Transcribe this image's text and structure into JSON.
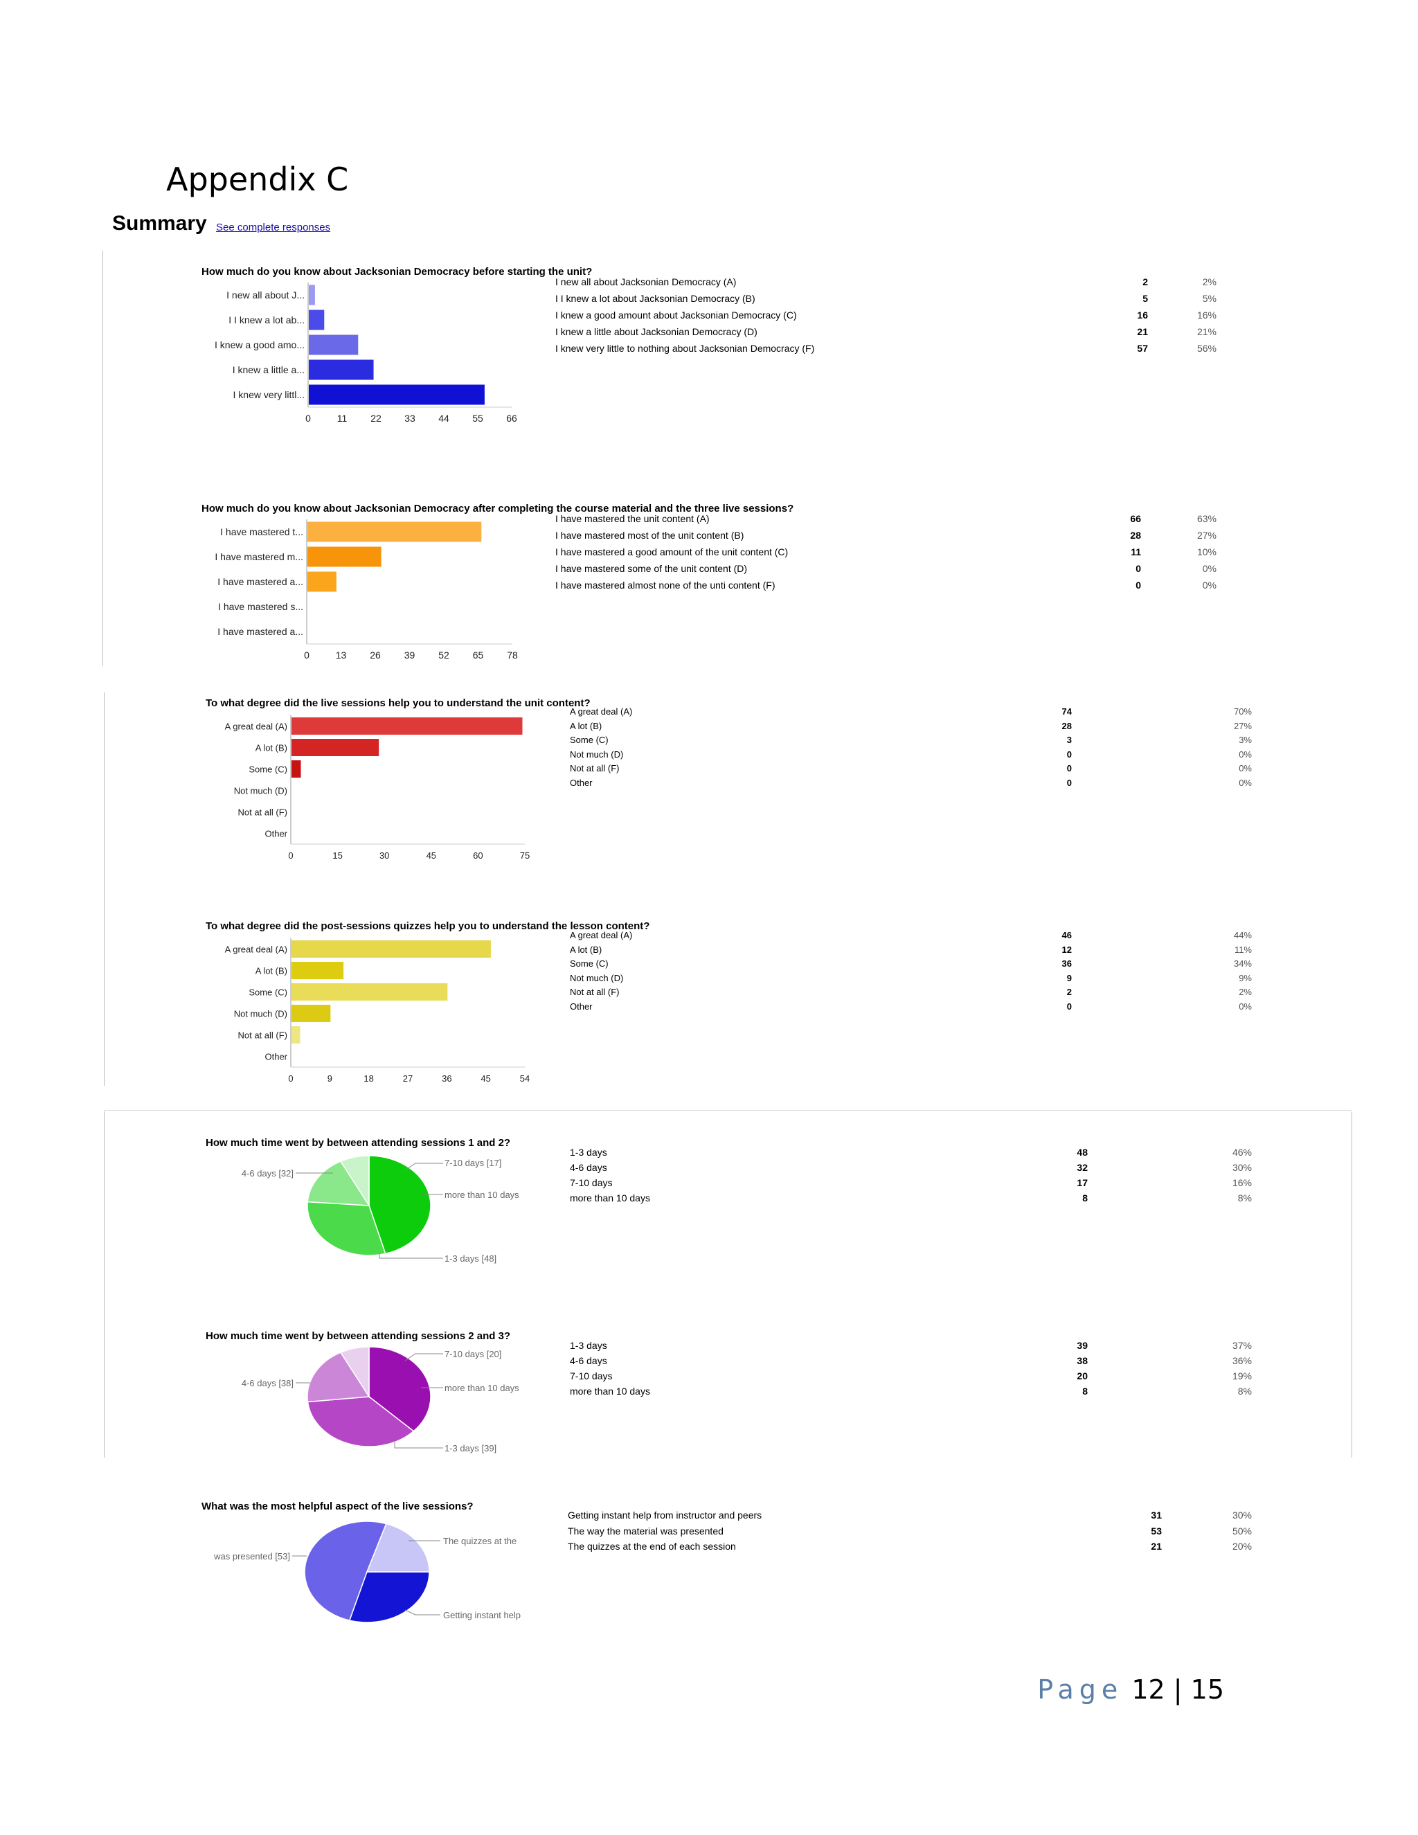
{
  "document": {
    "appendix_title": "Appendix C",
    "summary_heading": "Summary",
    "see_complete_link": "See complete responses",
    "footer": {
      "page_word": "Page",
      "page_numbers": "12 | 15"
    }
  },
  "chart_data": [
    {
      "type": "bar",
      "title": "How much do you know about Jacksonian Democracy before starting the unit?",
      "categories": [
        "I new all about J...",
        "I I knew a lot ab...",
        "I knew a good amo...",
        "I knew a little a...",
        "I knew very littl..."
      ],
      "values": [
        2,
        5,
        16,
        21,
        57
      ],
      "xlim": [
        0,
        66
      ],
      "xticks": [
        "0",
        "11",
        "22",
        "33",
        "44",
        "55",
        "66"
      ],
      "colors": [
        "#9a9af3",
        "#4b4bea",
        "#6a6ae8",
        "#2b2bdf",
        "#1111d6"
      ],
      "rows": [
        {
          "label": "I new all about Jacksonian Democracy (A)",
          "count": "2",
          "percent": "2%"
        },
        {
          "label": "I I knew a lot about Jacksonian Democracy (B)",
          "count": "5",
          "percent": "5%"
        },
        {
          "label": "I knew a good amount about Jacksonian Democracy (C)",
          "count": "16",
          "percent": "16%"
        },
        {
          "label": "I knew a little about Jacksonian Democracy (D)",
          "count": "21",
          "percent": "21%"
        },
        {
          "label": "I knew very little to nothing about Jacksonian Democracy (F)",
          "count": "57",
          "percent": "56%"
        }
      ]
    },
    {
      "type": "bar",
      "title": "How much do you know about Jacksonian Democracy after completing the course material and the three live sessions?",
      "categories": [
        "I have mastered t...",
        "I have mastered m...",
        "I have mastered a...",
        "I have mastered s...",
        "I have mastered a..."
      ],
      "values": [
        66,
        28,
        11,
        0,
        0
      ],
      "xlim": [
        0,
        78
      ],
      "xticks": [
        "0",
        "13",
        "26",
        "39",
        "52",
        "65",
        "78"
      ],
      "colors": [
        "#fbb040",
        "#f7940a",
        "#fba51c",
        "#fbb040",
        "#fbb040"
      ],
      "rows": [
        {
          "label": "I have mastered the unit content (A)",
          "count": "66",
          "percent": "63%"
        },
        {
          "label": "I have mastered most of the unit content (B)",
          "count": "28",
          "percent": "27%"
        },
        {
          "label": "I have mastered a good amount of the unit content (C)",
          "count": "11",
          "percent": "10%"
        },
        {
          "label": "I have mastered some of the unit content (D)",
          "count": "0",
          "percent": "0%"
        },
        {
          "label": "I have mastered almost none of the unti content (F)",
          "count": "0",
          "percent": "0%"
        }
      ]
    },
    {
      "type": "bar",
      "title": "To what degree did the live sessions help you to understand the unit content?",
      "categories": [
        "A great deal (A)",
        "A lot (B)",
        "Some (C)",
        "Not much (D)",
        "Not at all (F)",
        "Other"
      ],
      "values": [
        74,
        28,
        3,
        0,
        0,
        0
      ],
      "xlim": [
        0,
        75
      ],
      "xticks": [
        "0",
        "15",
        "30",
        "45",
        "60",
        "75"
      ],
      "colors": [
        "#df3a3a",
        "#d42424",
        "#c71212",
        "#df3a3a",
        "#df3a3a",
        "#df3a3a"
      ],
      "rows": [
        {
          "label": "A great deal (A)",
          "count": "74",
          "percent": "70%"
        },
        {
          "label": "A lot (B)",
          "count": "28",
          "percent": "27%"
        },
        {
          "label": "Some (C)",
          "count": "3",
          "percent": "3%"
        },
        {
          "label": "Not much (D)",
          "count": "0",
          "percent": "0%"
        },
        {
          "label": "Not at all (F)",
          "count": "0",
          "percent": "0%"
        },
        {
          "label": "Other",
          "count": "0",
          "percent": "0%"
        }
      ]
    },
    {
      "type": "bar",
      "title": "To what degree did the post-sessions quizzes help you to understand the lesson content?",
      "categories": [
        "A great deal (A)",
        "A lot (B)",
        "Some (C)",
        "Not much (D)",
        "Not at all (F)",
        "Other"
      ],
      "values": [
        46,
        12,
        36,
        9,
        2,
        0
      ],
      "xlim": [
        0,
        54
      ],
      "xticks": [
        "0",
        "9",
        "18",
        "27",
        "36",
        "45",
        "54"
      ],
      "colors": [
        "#e6d84a",
        "#ddcc10",
        "#e8dc58",
        "#dccb12",
        "#eee682",
        "#e6d84a"
      ],
      "rows": [
        {
          "label": "A great deal (A)",
          "count": "46",
          "percent": "44%"
        },
        {
          "label": "A lot (B)",
          "count": "12",
          "percent": "11%"
        },
        {
          "label": "Some (C)",
          "count": "36",
          "percent": "34%"
        },
        {
          "label": "Not much (D)",
          "count": "9",
          "percent": "9%"
        },
        {
          "label": "Not at all (F)",
          "count": "2",
          "percent": "2%"
        },
        {
          "label": "Other",
          "count": "0",
          "percent": "0%"
        }
      ]
    },
    {
      "type": "pie",
      "title": "How much time went by between attending sessions 1 and 2?",
      "slices": [
        {
          "label": "1-3 days",
          "value": 48,
          "color": "#0ccc0c",
          "callout": "1-3 days [48]"
        },
        {
          "label": "4-6 days",
          "value": 32,
          "color": "#4ada4a",
          "callout": "4-6 days [32]"
        },
        {
          "label": "7-10 days",
          "value": 17,
          "color": "#8ae88a",
          "callout": "7-10 days [17]"
        },
        {
          "label": "more than 10 days",
          "value": 8,
          "color": "#c9f4c9",
          "callout": "more than 10 days"
        }
      ],
      "rows": [
        {
          "label": "1-3 days",
          "count": "48",
          "percent": "46%"
        },
        {
          "label": "4-6 days",
          "count": "32",
          "percent": "30%"
        },
        {
          "label": "7-10 days",
          "count": "17",
          "percent": "16%"
        },
        {
          "label": "more than 10 days",
          "count": "8",
          "percent": "8%"
        }
      ]
    },
    {
      "type": "pie",
      "title": "How much time went by between attending sessions 2 and 3?",
      "slices": [
        {
          "label": "1-3 days",
          "value": 39,
          "color": "#9a0fb0",
          "callout": "1-3 days [39]"
        },
        {
          "label": "4-6 days",
          "value": 38,
          "color": "#b547c6",
          "callout": "4-6 days [38]"
        },
        {
          "label": "7-10 days",
          "value": 20,
          "color": "#cb86d8",
          "callout": "7-10 days [20]"
        },
        {
          "label": "more than 10 days",
          "value": 8,
          "color": "#ead0ef",
          "callout": "more than 10 days"
        }
      ],
      "rows": [
        {
          "label": "1-3 days",
          "count": "39",
          "percent": "37%"
        },
        {
          "label": "4-6 days",
          "count": "38",
          "percent": "36%"
        },
        {
          "label": "7-10 days",
          "count": "20",
          "percent": "19%"
        },
        {
          "label": "more than 10 days",
          "count": "8",
          "percent": "8%"
        }
      ]
    },
    {
      "type": "pie",
      "title": "What was the most helpful aspect of the live sessions?",
      "slices": [
        {
          "label": "Getting instant help from instructor and peers",
          "value": 31,
          "color": "#1414d4",
          "callout": "Getting instant help"
        },
        {
          "label": "The way the material was presented",
          "value": 53,
          "color": "#6a62e8",
          "callout": "was presented [53]"
        },
        {
          "label": "The quizzes at the end of each session",
          "value": 21,
          "color": "#c8c6f6",
          "callout": "The quizzes at the"
        }
      ],
      "rows": [
        {
          "label": "Getting instant help from instructor and peers",
          "count": "31",
          "percent": "30%"
        },
        {
          "label": "The way the material was presented",
          "count": "53",
          "percent": "50%"
        },
        {
          "label": "The quizzes at the end of each session",
          "count": "21",
          "percent": "20%"
        }
      ]
    }
  ]
}
